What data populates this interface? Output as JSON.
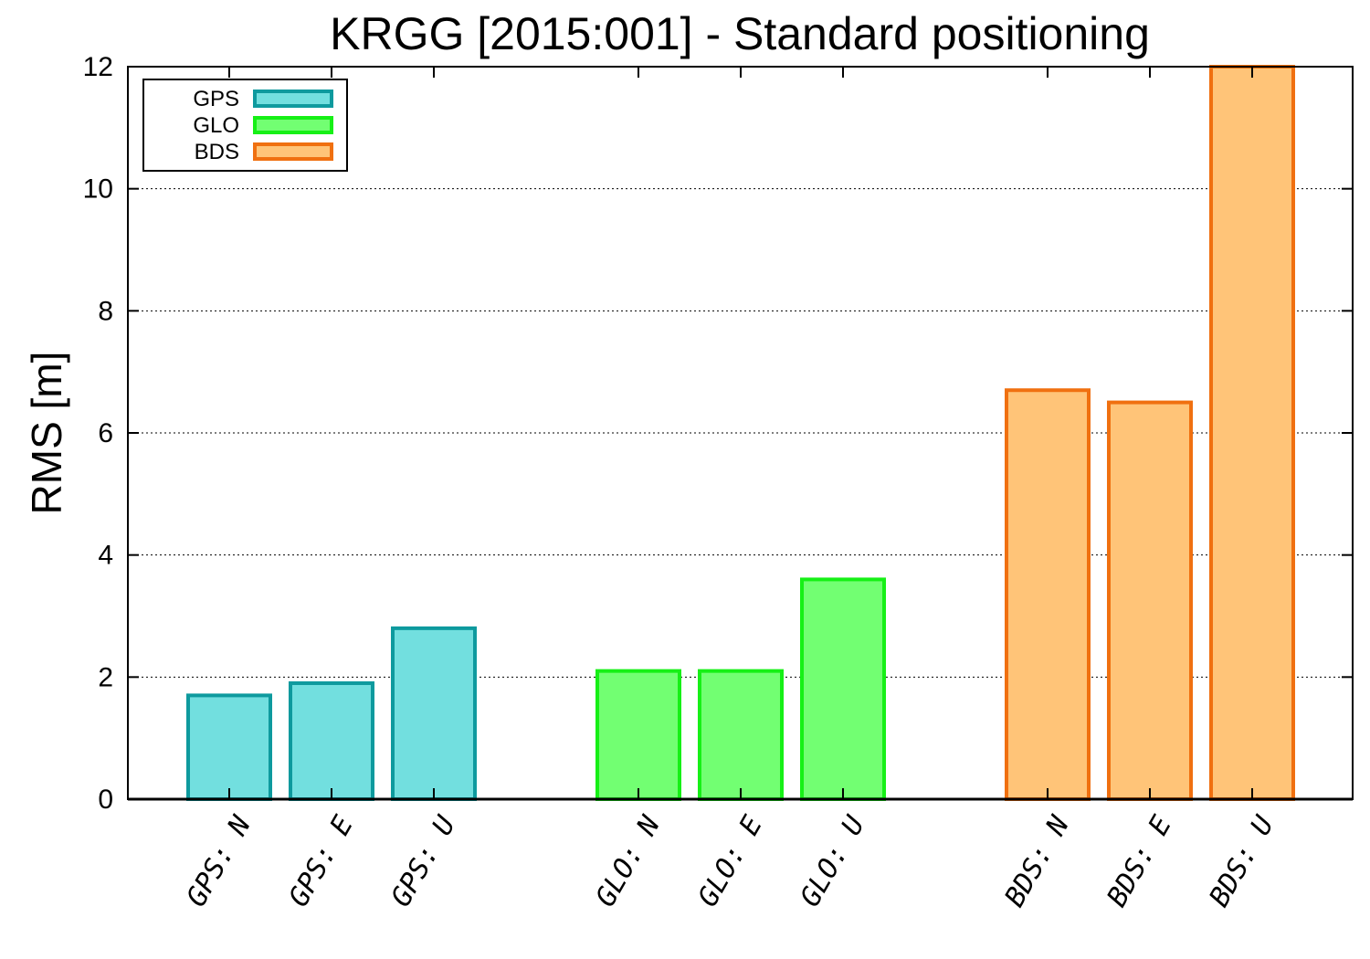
{
  "chart_data": {
    "type": "bar",
    "title": "KRGG [2015:001] - Standard positioning",
    "xlabel": "",
    "ylabel": "RMS [m]",
    "ylim": [
      0,
      12
    ],
    "yticks": [
      "0",
      "2",
      "4",
      "6",
      "8",
      "10",
      "12"
    ],
    "grid": "horizontal dashed",
    "legend_position": "top-left",
    "series": [
      {
        "name": "GPS",
        "color": "#0e9a9e",
        "fill": "#72dfdf",
        "categories": [
          "GPS: N",
          "GPS: E",
          "GPS: U"
        ],
        "values": [
          1.7,
          1.9,
          2.8
        ]
      },
      {
        "name": "GLO",
        "color": "#16f016",
        "fill": "#72ff72",
        "categories": [
          "GLO: N",
          "GLO: E",
          "GLO: U"
        ],
        "values": [
          2.1,
          2.1,
          3.6
        ]
      },
      {
        "name": "BDS",
        "color": "#f07010",
        "fill": "#ffc478",
        "categories": [
          "BDS: N",
          "BDS: E",
          "BDS: U"
        ],
        "values": [
          6.7,
          6.5,
          12.0
        ]
      }
    ]
  }
}
